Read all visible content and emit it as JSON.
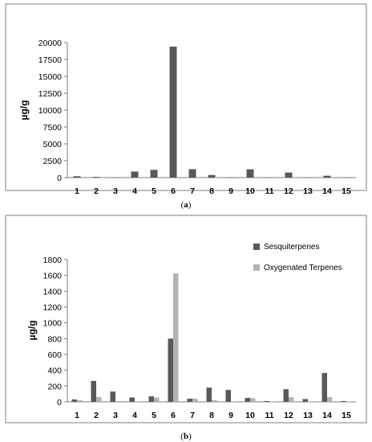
{
  "chart_data": [
    {
      "type": "bar",
      "caption": "(a)",
      "ylabel": "µg/g",
      "categories": [
        "1",
        "2",
        "3",
        "4",
        "5",
        "6",
        "7",
        "8",
        "9",
        "10",
        "11",
        "12",
        "13",
        "14",
        "15"
      ],
      "ylim": [
        0,
        20000
      ],
      "yticks": [
        "0",
        "2500",
        "5000",
        "7500",
        "10000",
        "12500",
        "15000",
        "17500",
        "20000"
      ],
      "series": [
        {
          "name": "",
          "color": "#595959",
          "values": [
            200,
            100,
            60,
            900,
            1150,
            19400,
            1250,
            380,
            60,
            1230,
            60,
            750,
            60,
            280,
            60
          ]
        }
      ],
      "grid": false,
      "legend": "none"
    },
    {
      "type": "bar",
      "caption": "(b)",
      "ylabel": "µg/g",
      "categories": [
        "1",
        "2",
        "3",
        "4",
        "5",
        "6",
        "7",
        "8",
        "9",
        "10",
        "11",
        "12",
        "13",
        "14",
        "15"
      ],
      "ylim": [
        0,
        1800
      ],
      "yticks": [
        "0",
        "200",
        "400",
        "600",
        "800",
        "1000",
        "1200",
        "1400",
        "1600",
        "1800"
      ],
      "series": [
        {
          "name": "Sesquiterpenes",
          "color": "#595959",
          "values": [
            30,
            265,
            130,
            55,
            70,
            800,
            40,
            180,
            150,
            50,
            10,
            160,
            35,
            365,
            10
          ]
        },
        {
          "name": "Oxygenated Terpenes",
          "color": "#b3b3b3",
          "values": [
            20,
            60,
            10,
            5,
            55,
            1625,
            40,
            20,
            5,
            45,
            5,
            60,
            5,
            60,
            5
          ]
        }
      ],
      "grid": false,
      "legend": "top-right"
    }
  ]
}
